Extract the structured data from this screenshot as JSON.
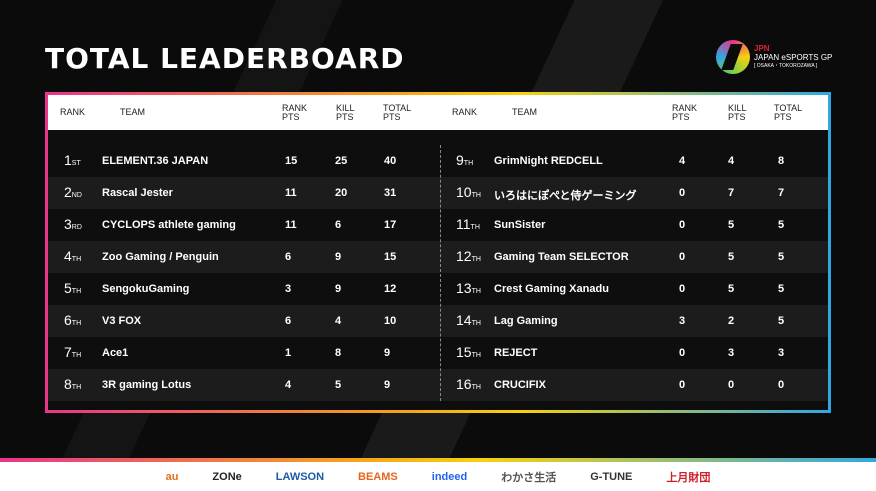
{
  "title": "TOTAL LEADERBOARD",
  "logo": {
    "top": "JPN",
    "name": "JAPAN eSPORTS GP",
    "sub": "[ OSAKA・TOKOROZAWA ]"
  },
  "headers": {
    "rank": "RANK",
    "team": "TEAM",
    "rank_pts": [
      "RANK",
      "PTS"
    ],
    "kill_pts": [
      "KILL",
      "PTS"
    ],
    "total_pts": [
      "TOTAL",
      "PTS"
    ]
  },
  "left": [
    {
      "n": "1",
      "s": "ST",
      "team": "ELEMENT.36 JAPAN",
      "rp": "15",
      "kp": "25",
      "tp": "40"
    },
    {
      "n": "2",
      "s": "ND",
      "team": "Rascal Jester",
      "rp": "11",
      "kp": "20",
      "tp": "31"
    },
    {
      "n": "3",
      "s": "RD",
      "team": "CYCLOPS athlete gaming",
      "rp": "11",
      "kp": "6",
      "tp": "17"
    },
    {
      "n": "4",
      "s": "TH",
      "team": "Zoo Gaming / Penguin",
      "rp": "6",
      "kp": "9",
      "tp": "15"
    },
    {
      "n": "5",
      "s": "TH",
      "team": "SengokuGaming",
      "rp": "3",
      "kp": "9",
      "tp": "12"
    },
    {
      "n": "6",
      "s": "TH",
      "team": "V3 FOX",
      "rp": "6",
      "kp": "4",
      "tp": "10"
    },
    {
      "n": "7",
      "s": "TH",
      "team": "Ace1",
      "rp": "1",
      "kp": "8",
      "tp": "9"
    },
    {
      "n": "8",
      "s": "TH",
      "team": "3R gaming Lotus",
      "rp": "4",
      "kp": "5",
      "tp": "9"
    }
  ],
  "right": [
    {
      "n": "9",
      "s": "TH",
      "team": "GrimNight REDCELL",
      "rp": "4",
      "kp": "4",
      "tp": "8"
    },
    {
      "n": "10",
      "s": "TH",
      "team": "いろはにぽぺと侍ゲーミング",
      "rp": "0",
      "kp": "7",
      "tp": "7"
    },
    {
      "n": "11",
      "s": "TH",
      "team": "SunSister",
      "rp": "0",
      "kp": "5",
      "tp": "5"
    },
    {
      "n": "12",
      "s": "TH",
      "team": "Gaming Team SELECTOR",
      "rp": "0",
      "kp": "5",
      "tp": "5"
    },
    {
      "n": "13",
      "s": "TH",
      "team": "Crest Gaming Xanadu",
      "rp": "0",
      "kp": "5",
      "tp": "5"
    },
    {
      "n": "14",
      "s": "TH",
      "team": "Lag Gaming",
      "rp": "3",
      "kp": "2",
      "tp": "5"
    },
    {
      "n": "15",
      "s": "TH",
      "team": "REJECT",
      "rp": "0",
      "kp": "3",
      "tp": "3"
    },
    {
      "n": "16",
      "s": "TH",
      "team": "CRUCIFIX",
      "rp": "0",
      "kp": "0",
      "tp": "0"
    }
  ],
  "sponsors": [
    {
      "name": "au",
      "color": "#e0701e"
    },
    {
      "name": "ZONe",
      "color": "#222"
    },
    {
      "name": "LAWSON",
      "color": "#1a5aa8"
    },
    {
      "name": "BEAMS",
      "color": "#e8641e"
    },
    {
      "name": "indeed",
      "color": "#2164f3"
    },
    {
      "name": "わかさ生活",
      "color": "#555"
    },
    {
      "name": "G-TUNE",
      "color": "#333"
    },
    {
      "name": "上月財団",
      "color": "#d0202a"
    }
  ]
}
